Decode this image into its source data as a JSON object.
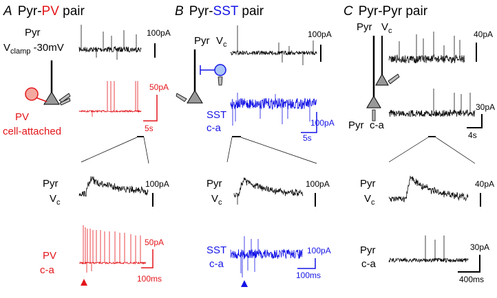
{
  "panels": [
    {
      "letter": "A",
      "title": [
        "Pyr-",
        "PV",
        " pair"
      ],
      "overview": {
        "cell": "Pyr",
        "clamp": [
          "V",
          "clamp",
          " -30mV"
        ],
        "cell_scale": "100pA",
        "partner": [
          "PV",
          "cell-attached"
        ],
        "partner_scale": "50pA",
        "time_scale": "5s"
      },
      "zoom": {
        "cell": [
          "Pyr",
          "V",
          "c"
        ],
        "cell_scale": "100pA",
        "partner": [
          "PV",
          "c-a"
        ],
        "partner_scale": "50pA",
        "time_scale": "100ms"
      }
    },
    {
      "letter": "B",
      "title": [
        "Pyr-",
        "SST",
        " pair"
      ],
      "overview": {
        "cell": [
          "Pyr",
          "V",
          "c"
        ],
        "cell_scale": "100pA",
        "partner": [
          "SST",
          "c-a"
        ],
        "partner_scale": "100pA",
        "time_scale": "5s"
      },
      "zoom": {
        "cell": [
          "Pyr",
          "V",
          "c"
        ],
        "cell_scale": "100pA",
        "partner": [
          "SST",
          "c-a"
        ],
        "partner_scale": "100pA",
        "time_scale": "100ms"
      }
    },
    {
      "letter": "C",
      "title": [
        "Pyr-Pyr pair"
      ],
      "overview": {
        "cell": [
          "Pyr",
          "V",
          "c"
        ],
        "cell_scale": "40pA",
        "partner": [
          "Pyr",
          "c-a"
        ],
        "partner_scale": "30pA",
        "time_scale": "4s"
      },
      "zoom": {
        "cell": [
          "Pyr",
          "V",
          "c"
        ],
        "cell_scale": "40pA",
        "partner": [
          "Pyr",
          "c-a"
        ],
        "partner_scale": "30pA",
        "time_scale": "400ms"
      }
    }
  ]
}
